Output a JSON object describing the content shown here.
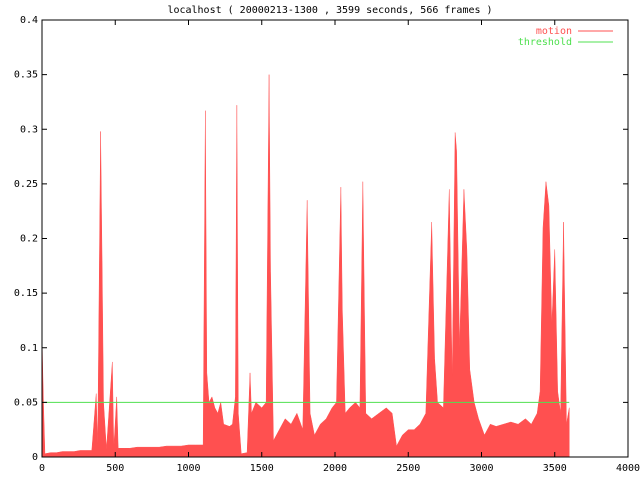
{
  "chart_data": {
    "type": "area",
    "title": "localhost ( 20000213-1300 , 3599 seconds, 566 frames )",
    "xlim": [
      0,
      4000
    ],
    "xticks": [
      0,
      500,
      1000,
      1500,
      2000,
      2500,
      3000,
      3500,
      4000
    ],
    "ylim": [
      0,
      0.4
    ],
    "yticks": [
      0,
      0.05,
      0.1,
      0.15,
      0.2,
      0.25,
      0.3,
      0.35,
      0.4
    ],
    "grid": false,
    "legend": "top-right",
    "series": [
      {
        "name": "motion",
        "color": "#ff5050",
        "type": "area",
        "x": [
          0,
          10,
          20,
          60,
          100,
          140,
          180,
          220,
          260,
          300,
          340,
          370,
          380,
          400,
          410,
          420,
          440,
          480,
          490,
          510,
          520,
          560,
          600,
          650,
          700,
          750,
          800,
          850,
          900,
          950,
          1000,
          1050,
          1100,
          1115,
          1125,
          1140,
          1160,
          1180,
          1200,
          1220,
          1240,
          1280,
          1300,
          1320,
          1325,
          1330,
          1340,
          1360,
          1400,
          1420,
          1430,
          1460,
          1500,
          1530,
          1550,
          1560,
          1580,
          1620,
          1660,
          1700,
          1740,
          1780,
          1810,
          1830,
          1860,
          1900,
          1940,
          1980,
          2010,
          2040,
          2050,
          2070,
          2100,
          2140,
          2170,
          2190,
          2210,
          2250,
          2300,
          2350,
          2390,
          2420,
          2460,
          2500,
          2540,
          2580,
          2620,
          2660,
          2680,
          2700,
          2740,
          2780,
          2800,
          2820,
          2830,
          2850,
          2880,
          2900,
          2920,
          2950,
          2980,
          3020,
          3060,
          3100,
          3150,
          3200,
          3250,
          3300,
          3340,
          3380,
          3400,
          3420,
          3440,
          3460,
          3480,
          3500,
          3520,
          3540,
          3560,
          3580,
          3599
        ],
        "values": [
          0.11,
          0.05,
          0.003,
          0.004,
          0.004,
          0.005,
          0.005,
          0.005,
          0.006,
          0.006,
          0.006,
          0.058,
          0.007,
          0.298,
          0.18,
          0.05,
          0.007,
          0.087,
          0.008,
          0.055,
          0.008,
          0.008,
          0.008,
          0.009,
          0.009,
          0.009,
          0.009,
          0.01,
          0.01,
          0.01,
          0.011,
          0.011,
          0.011,
          0.317,
          0.077,
          0.05,
          0.055,
          0.045,
          0.04,
          0.05,
          0.03,
          0.028,
          0.03,
          0.055,
          0.19,
          0.322,
          0.04,
          0.003,
          0.004,
          0.077,
          0.04,
          0.05,
          0.045,
          0.05,
          0.35,
          0.17,
          0.015,
          0.025,
          0.035,
          0.03,
          0.04,
          0.025,
          0.235,
          0.04,
          0.02,
          0.03,
          0.035,
          0.045,
          0.05,
          0.247,
          0.135,
          0.04,
          0.045,
          0.05,
          0.045,
          0.252,
          0.04,
          0.035,
          0.04,
          0.045,
          0.04,
          0.01,
          0.02,
          0.025,
          0.025,
          0.03,
          0.04,
          0.215,
          0.09,
          0.05,
          0.045,
          0.245,
          0.07,
          0.297,
          0.28,
          0.1,
          0.245,
          0.19,
          0.08,
          0.05,
          0.035,
          0.02,
          0.03,
          0.028,
          0.03,
          0.032,
          0.03,
          0.035,
          0.03,
          0.04,
          0.06,
          0.21,
          0.252,
          0.23,
          0.12,
          0.19,
          0.06,
          0.04,
          0.215,
          0.03,
          0.045
        ]
      },
      {
        "name": "threshold",
        "color": "#50e050",
        "type": "line",
        "x": [
          0,
          3599
        ],
        "values": [
          0.05,
          0.05
        ]
      }
    ]
  }
}
